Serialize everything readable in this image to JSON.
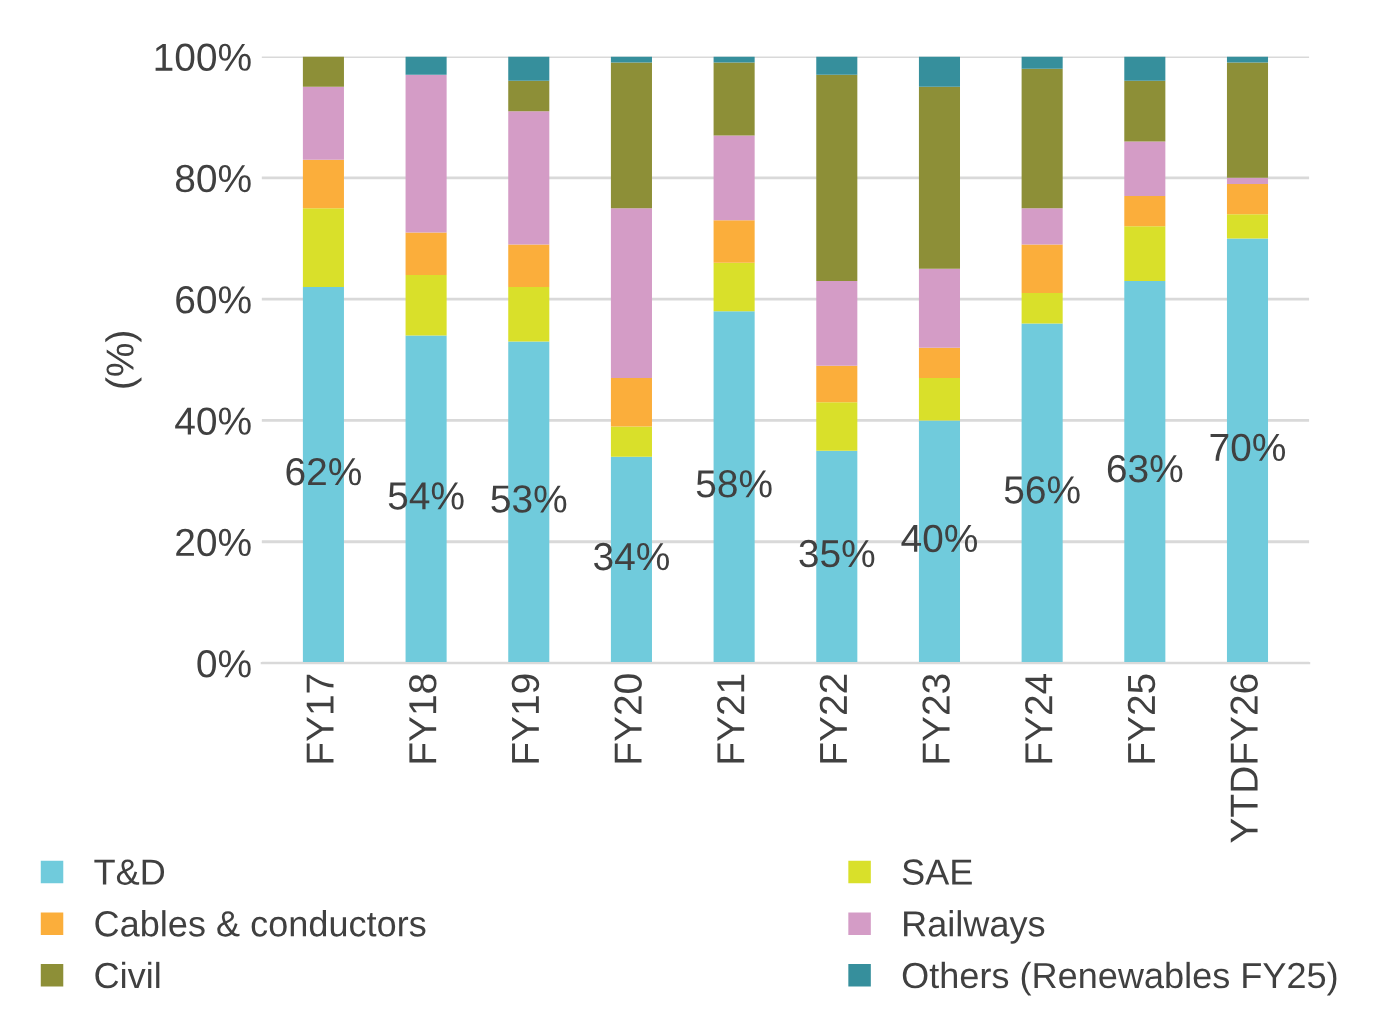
{
  "chart_data": {
    "type": "bar",
    "stacked": true,
    "ylabel": "(%)",
    "categories": [
      "FY17",
      "FY18",
      "FY19",
      "FY20",
      "FY21",
      "FY22",
      "FY23",
      "FY24",
      "FY25",
      "YTDFY26"
    ],
    "series": [
      {
        "name": "T&D",
        "color": "#70cbdc",
        "values": [
          62,
          54,
          53,
          34,
          58,
          35,
          40,
          56,
          63,
          70
        ],
        "value_labels": [
          "62%",
          "54%",
          "53%",
          "34%",
          "58%",
          "35%",
          "40%",
          "56%",
          "63%",
          "70%"
        ]
      },
      {
        "name": "SAE",
        "color": "#d9e02a",
        "values": [
          13,
          10,
          9,
          5,
          8,
          8,
          7,
          5,
          9,
          4
        ]
      },
      {
        "name": "Cables & conductors",
        "color": "#fbae3b",
        "values": [
          8,
          7,
          7,
          8,
          7,
          6,
          5,
          8,
          5,
          5
        ]
      },
      {
        "name": "Railways",
        "color": "#d49cc6",
        "values": [
          12,
          26,
          22,
          28,
          14,
          14,
          13,
          6,
          9,
          1
        ]
      },
      {
        "name": "Civil",
        "color": "#8d8f37",
        "values": [
          5,
          0,
          5,
          24,
          12,
          34,
          30,
          23,
          10,
          19
        ]
      },
      {
        "name": "Others (Renewables FY25)",
        "color": "#368f9c",
        "values": [
          0,
          3,
          4,
          1,
          1,
          3,
          5,
          2,
          4,
          1
        ]
      }
    ],
    "ylim": [
      0,
      100
    ],
    "yticks": [
      {
        "value": 0,
        "label": "0%"
      },
      {
        "value": 20,
        "label": "20%"
      },
      {
        "value": 40,
        "label": "40%"
      },
      {
        "value": 60,
        "label": "60%"
      },
      {
        "value": 80,
        "label": "80%"
      },
      {
        "value": 100,
        "label": "100%"
      }
    ],
    "grid": "y",
    "legend": "bottom"
  }
}
